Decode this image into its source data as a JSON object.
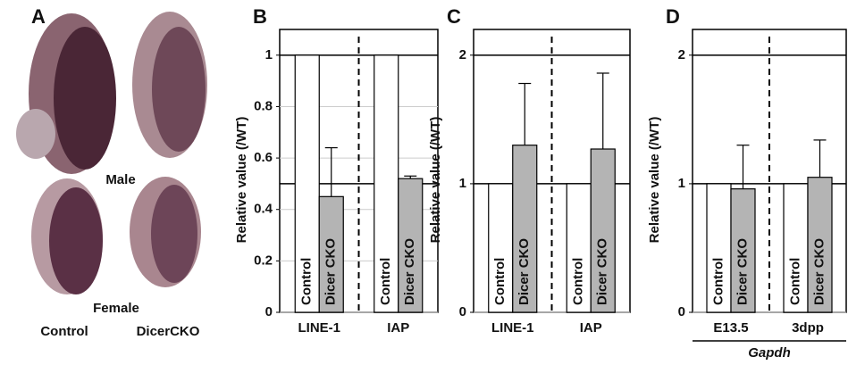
{
  "panel_a": {
    "label": "A",
    "top_label": "Male",
    "bottom_label": "Female",
    "left_label": "Control",
    "right_label": "DicerCKO"
  },
  "chart_data": [
    {
      "type": "bar",
      "label": "B",
      "y_label": "Relative value (/WT)",
      "categories": [
        "LINE-1",
        "IAP"
      ],
      "series": [
        {
          "name": "Control",
          "color": "#ffffff",
          "values": [
            1,
            1
          ]
        },
        {
          "name": "Dicer CKO",
          "color": "#b4b4b4",
          "values": [
            0.45,
            0.52
          ],
          "errors": [
            0.19,
            0.01
          ]
        }
      ],
      "ylim": [
        0,
        1.1
      ],
      "yticks": [
        0,
        0.2,
        0.4,
        0.6,
        0.8,
        1
      ],
      "reference_lines": [
        0.5,
        1
      ],
      "grid": true
    },
    {
      "type": "bar",
      "label": "C",
      "y_label": "Relative value (/WT)",
      "categories": [
        "LINE-1",
        "IAP"
      ],
      "series": [
        {
          "name": "Control",
          "color": "#ffffff",
          "values": [
            1,
            1
          ]
        },
        {
          "name": "Dicer CKO",
          "color": "#b4b4b4",
          "values": [
            1.3,
            1.27
          ],
          "errors": [
            0.48,
            0.59
          ]
        }
      ],
      "ylim": [
        0,
        2.2
      ],
      "yticks": [
        0,
        1,
        2
      ],
      "reference_lines": [
        1,
        2
      ],
      "grid": true
    },
    {
      "type": "bar",
      "label": "D",
      "y_label": "Relative value (/WT)",
      "categories": [
        "E13.5",
        "3dpp"
      ],
      "x_label": "Gapdh",
      "series": [
        {
          "name": "Control",
          "color": "#ffffff",
          "values": [
            1,
            1
          ]
        },
        {
          "name": "Dicer CKO",
          "color": "#b4b4b4",
          "values": [
            0.96,
            1.05
          ],
          "errors": [
            0.34,
            0.29
          ]
        }
      ],
      "ylim": [
        0,
        2.2
      ],
      "yticks": [
        0,
        1,
        2
      ],
      "reference_lines": [
        1,
        2
      ],
      "grid": true
    }
  ]
}
